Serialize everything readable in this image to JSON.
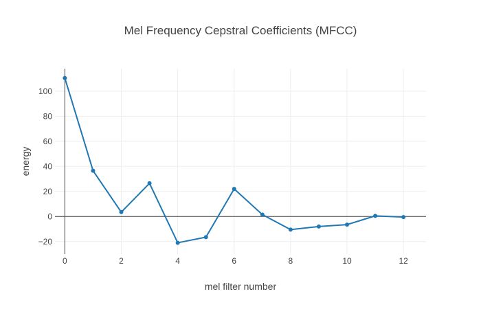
{
  "chart_data": {
    "type": "line",
    "title": "Mel Frequency Cepstral Coefficients (MFCC)",
    "xlabel": "mel filter number",
    "ylabel": "energy",
    "xlim": [
      -0.35,
      12.8
    ],
    "ylim": [
      -30,
      118
    ],
    "xticks": [
      0,
      2,
      4,
      6,
      8,
      10,
      12
    ],
    "yticks": [
      -20,
      0,
      20,
      40,
      60,
      80,
      100
    ],
    "ytick_labels": [
      "−20",
      "0",
      "20",
      "40",
      "60",
      "80",
      "100"
    ],
    "grid": true,
    "zeroline": true,
    "legend": "none",
    "series": [
      {
        "color": "#1f77b4",
        "mode": "lines+markers",
        "x": [
          0,
          1,
          2,
          3,
          4,
          5,
          6,
          7,
          8,
          9,
          10,
          11,
          12
        ],
        "y": [
          110.5,
          36.5,
          3.5,
          26.5,
          -21.0,
          -16.5,
          22.0,
          1.5,
          -10.5,
          -8.0,
          -6.5,
          0.5,
          -0.5
        ]
      }
    ]
  }
}
